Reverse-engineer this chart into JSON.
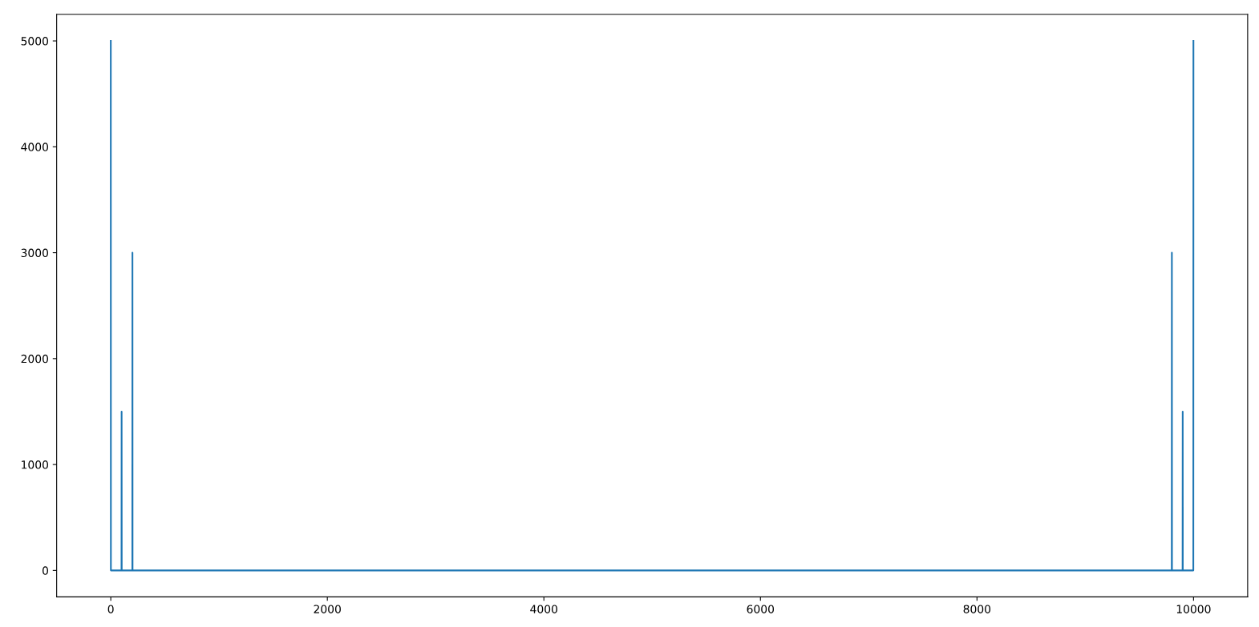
{
  "chart_data": {
    "type": "line",
    "x": [
      0,
      1,
      99,
      100,
      101,
      199,
      200,
      201,
      9798,
      9799,
      9800,
      9801,
      9898,
      9899,
      9900,
      9901,
      9998,
      9999
    ],
    "series": [
      {
        "color": "#1f77b4",
        "values": [
          5000,
          0,
          0,
          1500,
          0,
          0,
          3000,
          0,
          0,
          0,
          3000,
          0,
          0,
          0,
          1500,
          0,
          0,
          5000
        ]
      }
    ],
    "xlim": [
      -500,
      10500
    ],
    "ylim": [
      -250,
      5250
    ],
    "xticks": [
      0,
      2000,
      4000,
      6000,
      8000,
      10000
    ],
    "yticks": [
      0,
      1000,
      2000,
      3000,
      4000,
      5000
    ],
    "grid": false,
    "marker": "none",
    "line_style": "solid"
  }
}
